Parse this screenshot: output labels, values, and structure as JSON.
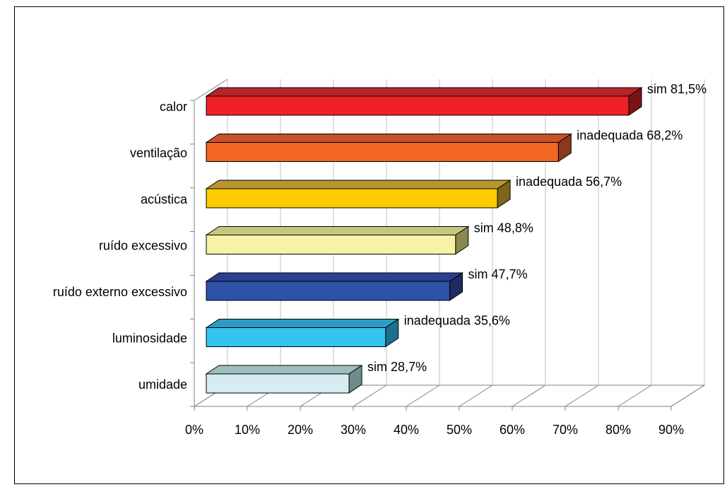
{
  "chart_data": {
    "type": "bar",
    "orientation": "horizontal",
    "style": "3d",
    "categories": [
      "calor",
      "ventilação",
      "acústica",
      "ruído excessivo",
      "ruído externo excessivo",
      "luminosidade",
      "umidade"
    ],
    "values": [
      81.5,
      68.2,
      56.7,
      48.8,
      47.7,
      35.6,
      28.7
    ],
    "data_labels": [
      "sim 81,5%",
      "inadequada 68,2%",
      "inadequada 56,7%",
      "sim 48,8%",
      "sim 47,7%",
      "inadequada 35,6%",
      "sim 28,7%"
    ],
    "colors": [
      {
        "front": "#ee2226",
        "top": "#b5252a",
        "side": "#7a1318"
      },
      {
        "front": "#f26522",
        "top": "#c4522b",
        "side": "#8a3a1a"
      },
      {
        "front": "#ffcc00",
        "top": "#b8962e",
        "side": "#7d6418"
      },
      {
        "front": "#f7f3a6",
        "top": "#c7c57f",
        "side": "#8a874f"
      },
      {
        "front": "#2e52a8",
        "top": "#2a3f8f",
        "side": "#1e2b66"
      },
      {
        "front": "#33c4f0",
        "top": "#2e9bc4",
        "side": "#1c6f8e"
      },
      {
        "front": "#d4ecf2",
        "top": "#9fbfbf",
        "side": "#6e8c8c"
      }
    ],
    "xlim": [
      0,
      90
    ],
    "x_ticks": [
      0,
      10,
      20,
      30,
      40,
      50,
      60,
      70,
      80,
      90
    ],
    "x_tick_labels": [
      "0%",
      "10%",
      "20%",
      "30%",
      "40%",
      "50%",
      "60%",
      "70%",
      "80%",
      "90%"
    ],
    "grid": true,
    "title": "",
    "xlabel": "",
    "ylabel": ""
  }
}
